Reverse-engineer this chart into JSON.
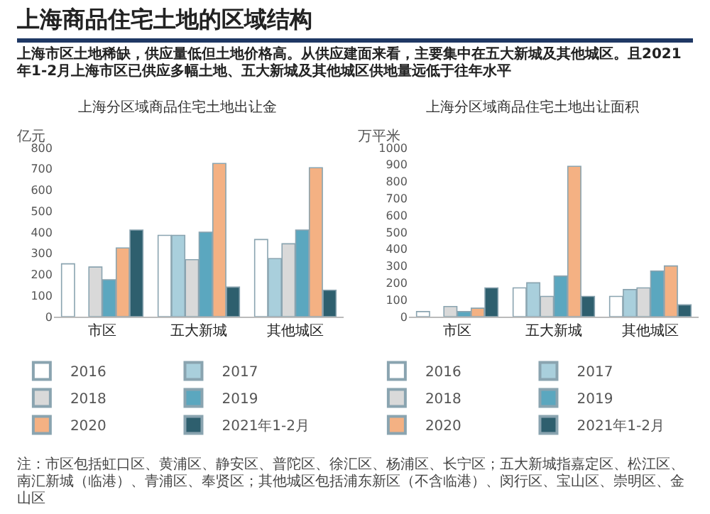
{
  "chart_data": [
    {
      "type": "bar",
      "title": "上海分区域商品住宅土地出让金",
      "ylabel": "亿元",
      "annotations": [
        "上海商品住宅土地的区域结构",
        "上海市区土地稀缺，供应量低但土地价格高。从供应建面来看，主要集中在五大新城及其他城区。且2021年1-2月上海市区已供应多幅土地、五大新城及其他城区供地量远低于往年水平"
      ],
      "categories": [
        "市区",
        "五大新城",
        "其他城区"
      ],
      "series": [
        {
          "name": "2016",
          "color": "#ffffff",
          "values": [
            250,
            385,
            365
          ]
        },
        {
          "name": "2017",
          "color": "#a9cfdc",
          "values": [
            null,
            385,
            275
          ]
        },
        {
          "name": "2018",
          "color": "#d9d9d9",
          "values": [
            235,
            270,
            345
          ]
        },
        {
          "name": "2019",
          "color": "#5ba7bf",
          "values": [
            175,
            400,
            410
          ]
        },
        {
          "name": "2020",
          "color": "#f4b183",
          "values": [
            325,
            725,
            705
          ]
        },
        {
          "name": "2021年1-2月",
          "color": "#2e5f6e",
          "values": [
            410,
            140,
            125
          ]
        }
      ],
      "ylim": [
        0,
        800
      ],
      "yticks": [
        0,
        100,
        200,
        300,
        400,
        500,
        600,
        700,
        800
      ],
      "grid": false,
      "legend": "bottom"
    },
    {
      "type": "bar",
      "title": "上海分区域商品住宅土地出让面积",
      "ylabel": "万平米",
      "annotations": [
        "注：市区包括虹口区、黄浦区、静安区、普陀区、徐汇区、杨浦区、长宁区；五大新城指嘉定区、松江区、南汇新城（临港）、青浦区、奉贤区；其他城区包括浦东新区（不含临港）、闵行区、宝山区、崇明区、金山区"
      ],
      "categories": [
        "市区",
        "五大新城",
        "其他城区"
      ],
      "series": [
        {
          "name": "2016",
          "color": "#ffffff",
          "values": [
            30,
            170,
            120
          ]
        },
        {
          "name": "2017",
          "color": "#a9cfdc",
          "values": [
            null,
            200,
            160
          ]
        },
        {
          "name": "2018",
          "color": "#d9d9d9",
          "values": [
            60,
            120,
            170
          ]
        },
        {
          "name": "2019",
          "color": "#5ba7bf",
          "values": [
            30,
            240,
            270
          ]
        },
        {
          "name": "2020",
          "color": "#f4b183",
          "values": [
            50,
            890,
            300
          ]
        },
        {
          "name": "2021年1-2月",
          "color": "#2e5f6e",
          "values": [
            170,
            120,
            70
          ]
        }
      ],
      "ylim": [
        0,
        1000
      ],
      "yticks": [
        0,
        100,
        200,
        300,
        400,
        500,
        600,
        700,
        800,
        900,
        1000
      ],
      "grid": false,
      "legend": "bottom"
    }
  ]
}
